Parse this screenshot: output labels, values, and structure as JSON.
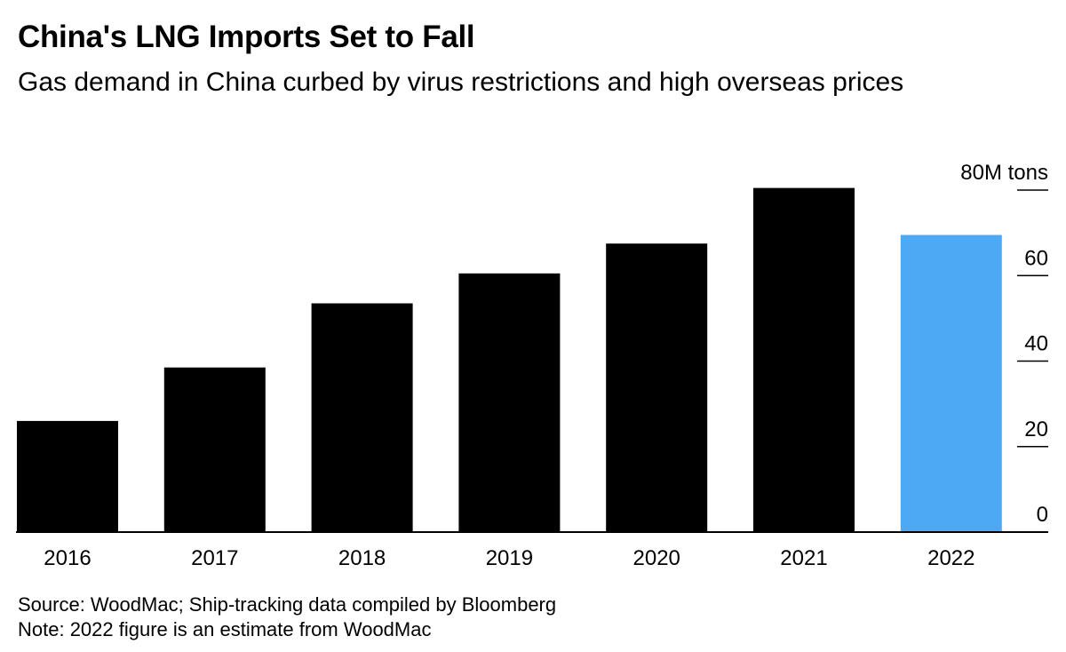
{
  "header": {
    "title": "China's LNG Imports Set to Fall",
    "subtitle": "Gas demand in China curbed by virus restrictions and high overseas prices"
  },
  "footer": {
    "source": "Source: WoodMac; Ship-tracking data compiled by Bloomberg",
    "note": "Note: 2022 figure is an estimate from WoodMac"
  },
  "colors": {
    "bar": "#000000",
    "highlight": "#4ea9f5",
    "axis": "#000000"
  },
  "chart_data": {
    "type": "bar",
    "title": "China's LNG Imports Set to Fall",
    "subtitle": "Gas demand in China curbed by virus restrictions and high overseas prices",
    "categories": [
      "2016",
      "2017",
      "2018",
      "2019",
      "2020",
      "2021",
      "2022"
    ],
    "values": [
      26,
      38.5,
      53.5,
      60.5,
      67.5,
      80.5,
      69.5
    ],
    "highlight_index": 6,
    "ylim": [
      0,
      80
    ],
    "yticks": [
      0,
      20,
      40,
      60,
      80
    ],
    "ytick_labels": [
      "0",
      "20",
      "40",
      "60",
      "80M tons"
    ],
    "yaxis_position": "right",
    "grid": false,
    "xlabel": "",
    "ylabel": ""
  }
}
